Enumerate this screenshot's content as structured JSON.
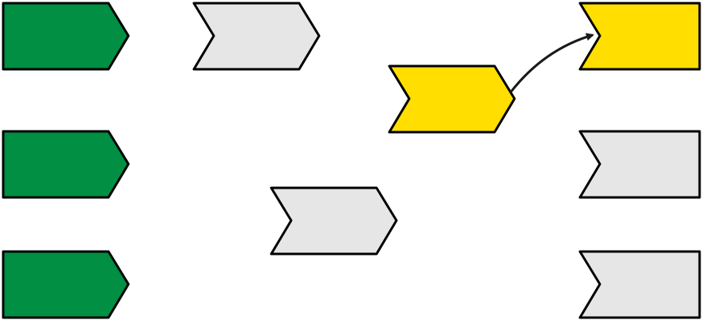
{
  "colors": {
    "green": "#008f43",
    "gray": "#e6e6e6",
    "yellow": "#ffde00",
    "outline": "#000000",
    "connector": "#1a1a1a"
  },
  "shapes": [
    {
      "id": "green-1",
      "kind": "pentagon-arrow",
      "fill": "green"
    },
    {
      "id": "green-2",
      "kind": "pentagon-arrow",
      "fill": "green"
    },
    {
      "id": "green-3",
      "kind": "pentagon-arrow",
      "fill": "green"
    },
    {
      "id": "gray-top",
      "kind": "chevron",
      "fill": "gray"
    },
    {
      "id": "gray-middle",
      "kind": "chevron",
      "fill": "gray"
    },
    {
      "id": "yellow-middle",
      "kind": "chevron",
      "fill": "yellow"
    },
    {
      "id": "yellow-right",
      "kind": "notched-rectangle",
      "fill": "yellow"
    },
    {
      "id": "gray-right-2",
      "kind": "notched-rectangle",
      "fill": "gray"
    },
    {
      "id": "gray-right-3",
      "kind": "notched-rectangle",
      "fill": "gray"
    }
  ],
  "connections": [
    {
      "from": "yellow-middle",
      "to": "yellow-right"
    }
  ]
}
